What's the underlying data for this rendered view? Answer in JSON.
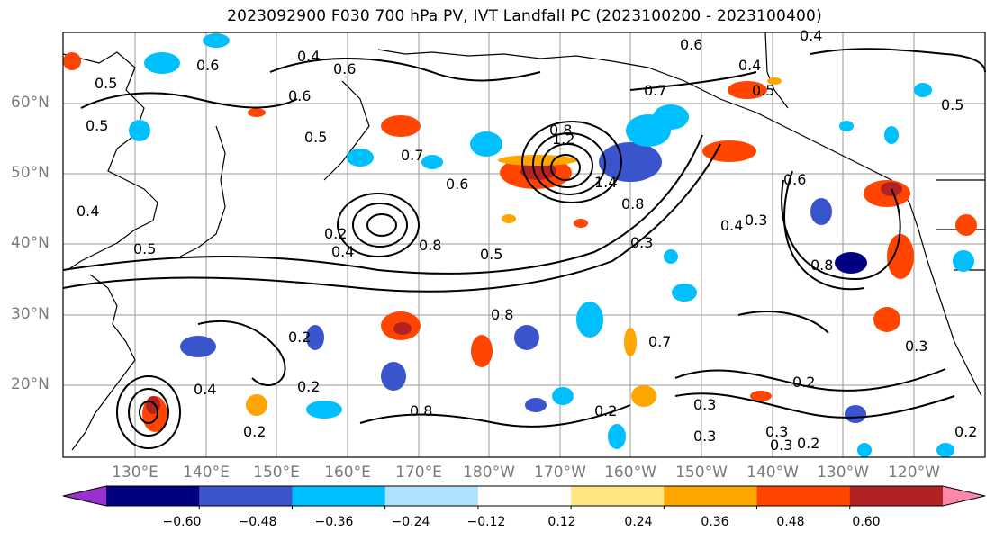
{
  "title": "2023092900 F030 700 hPa PV, IVT Landfall PC (2023100200 - 2023100400)",
  "lat_labels": [
    "60°N",
    "50°N",
    "40°N",
    "30°N",
    "20°N"
  ],
  "lon_labels": [
    "130°E",
    "140°E",
    "150°E",
    "160°E",
    "170°E",
    "180°W",
    "170°W",
    "160°W",
    "150°W",
    "140°W",
    "130°W",
    "120°W"
  ],
  "colorbar": {
    "ticks": [
      "−0.60",
      "−0.48",
      "−0.36",
      "−0.24",
      "−0.12",
      "0.12",
      "0.24",
      "0.36",
      "0.48",
      "0.60"
    ],
    "colors": [
      "#9b30d0",
      "#000080",
      "#3a55cc",
      "#00bfff",
      "#b0e2ff",
      "#ffffff",
      "#ffe680",
      "#ffa500",
      "#ff4500",
      "#b22222",
      "#ff88aa"
    ]
  },
  "contour_labels": [
    "0.4",
    "0.5",
    "0.6",
    "0.6",
    "0.5",
    "0.7",
    "0.6",
    "0.5",
    "0.4",
    "0.5",
    "0.4",
    "0.8",
    "1.2",
    "1.4",
    "0.8",
    "0.7",
    "0.4",
    "0.3",
    "0.3",
    "0.6",
    "0.5",
    "0.6",
    "0.4",
    "0.8",
    "0.5",
    "0.6",
    "0.8",
    "0.3",
    "0.2",
    "0.3",
    "0.4",
    "0.2",
    "0.8",
    "0.2",
    "0.2",
    "0.3",
    "0.2",
    "0.3",
    "0.2",
    "0.3",
    "0.2",
    "0.2",
    "0.4",
    "0.7",
    "0.8",
    "0.5"
  ]
}
